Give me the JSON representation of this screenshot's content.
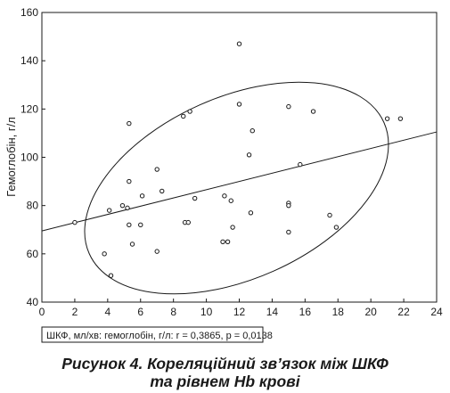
{
  "chart_data": {
    "type": "scatter",
    "ylabel": "Гемоглобін, г/л",
    "xlim": [
      0,
      24
    ],
    "ylim": [
      40,
      160
    ],
    "xticks": [
      0,
      2,
      4,
      6,
      8,
      10,
      12,
      14,
      16,
      18,
      20,
      22,
      24
    ],
    "yticks": [
      40,
      60,
      80,
      100,
      120,
      140,
      160
    ],
    "grid": false,
    "legend": "ШКФ, мл/хв: гемоглобін, г/л: r = 0,3865, p = 0,0138",
    "legend_position": "bottom-left",
    "points": [
      {
        "x": 2.0,
        "y": 73
      },
      {
        "x": 3.8,
        "y": 60
      },
      {
        "x": 4.1,
        "y": 78
      },
      {
        "x": 4.2,
        "y": 51
      },
      {
        "x": 4.9,
        "y": 80
      },
      {
        "x": 5.2,
        "y": 79
      },
      {
        "x": 5.3,
        "y": 114
      },
      {
        "x": 5.3,
        "y": 90
      },
      {
        "x": 5.3,
        "y": 72
      },
      {
        "x": 5.5,
        "y": 64
      },
      {
        "x": 6.0,
        "y": 72
      },
      {
        "x": 6.1,
        "y": 84
      },
      {
        "x": 7.0,
        "y": 95
      },
      {
        "x": 7.0,
        "y": 61
      },
      {
        "x": 7.3,
        "y": 86
      },
      {
        "x": 8.6,
        "y": 117
      },
      {
        "x": 8.7,
        "y": 73
      },
      {
        "x": 8.9,
        "y": 73
      },
      {
        "x": 9.0,
        "y": 119
      },
      {
        "x": 9.3,
        "y": 83
      },
      {
        "x": 11.0,
        "y": 65
      },
      {
        "x": 11.1,
        "y": 84
      },
      {
        "x": 11.3,
        "y": 65
      },
      {
        "x": 11.5,
        "y": 82
      },
      {
        "x": 11.6,
        "y": 71
      },
      {
        "x": 12.0,
        "y": 147
      },
      {
        "x": 12.0,
        "y": 122
      },
      {
        "x": 12.6,
        "y": 101
      },
      {
        "x": 12.7,
        "y": 77
      },
      {
        "x": 12.8,
        "y": 111
      },
      {
        "x": 15.0,
        "y": 121
      },
      {
        "x": 15.0,
        "y": 81
      },
      {
        "x": 15.0,
        "y": 80
      },
      {
        "x": 15.0,
        "y": 69
      },
      {
        "x": 15.7,
        "y": 97
      },
      {
        "x": 16.5,
        "y": 119
      },
      {
        "x": 17.5,
        "y": 76
      },
      {
        "x": 17.9,
        "y": 71
      },
      {
        "x": 21.0,
        "y": 116
      },
      {
        "x": 21.8,
        "y": 116
      }
    ],
    "regression_line": {
      "x": [
        0,
        24
      ],
      "y": [
        69.5,
        110.5
      ]
    },
    "confidence_ellipse": true,
    "caption": [
      "Рисунок 4. Кореляційний зв’язок між ШКФ",
      "та рівнем Hb крові"
    ]
  }
}
